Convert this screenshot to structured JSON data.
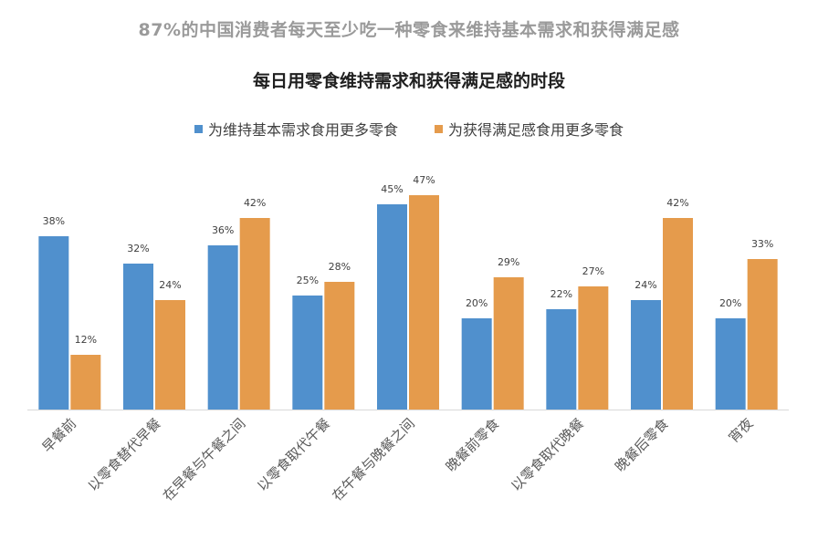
{
  "header": {
    "supertitle": "87%的中国消费者每天至少吃一种零食来维持基本需求和获得满足感"
  },
  "colors": {
    "series1": "#5090cd",
    "series2": "#e59b4c",
    "axis": "#d9d9d9",
    "label": "#404040"
  },
  "chart_data": {
    "type": "bar",
    "title": "每日用零食维持需求和获得满足感的时段",
    "categories": [
      "早餐前",
      "以零食替代早餐",
      "在早餐与午餐之间",
      "以零食取代午餐",
      "在午餐与晚餐之间",
      "晚餐前零食",
      "以零食取代晚餐",
      "晚餐后零食",
      "宵夜"
    ],
    "series": [
      {
        "name": "为维持基本需求食用更多零食",
        "values": [
          38,
          32,
          36,
          25,
          45,
          20,
          22,
          24,
          20
        ]
      },
      {
        "name": "为获得满足感食用更多零食",
        "values": [
          12,
          24,
          42,
          28,
          47,
          29,
          27,
          42,
          33
        ]
      }
    ],
    "data_labels": [
      [
        "38%",
        "32%",
        "36%",
        "25%",
        "45%",
        "20%",
        "22%",
        "24%",
        "20%"
      ],
      [
        "12%",
        "24%",
        "42%",
        "28%",
        "47%",
        "29%",
        "27%",
        "42%",
        "33%"
      ]
    ],
    "ylim": [
      0,
      50
    ],
    "legend_position": "top",
    "grid": false,
    "xlabel": "",
    "ylabel": ""
  }
}
